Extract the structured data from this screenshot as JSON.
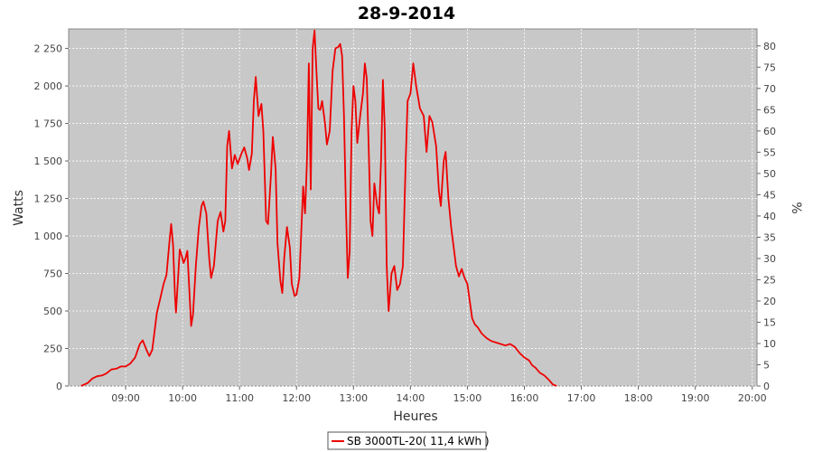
{
  "chart_data": {
    "type": "line",
    "title": "28-9-2014",
    "xlabel": "Heures",
    "ylabel": "Watts",
    "y2label": "%",
    "x_ticks": [
      "09:00",
      "10:00",
      "11:00",
      "12:00",
      "13:00",
      "14:00",
      "15:00",
      "16:00",
      "17:00",
      "18:00",
      "19:00",
      "20:00"
    ],
    "y_ticks": [
      "0",
      "250",
      "500",
      "750",
      "1 000",
      "1 250",
      "1 500",
      "1 750",
      "2 000",
      "2 250"
    ],
    "y2_ticks": [
      "0",
      "5",
      "10",
      "15",
      "20",
      "25",
      "30",
      "35",
      "40",
      "45",
      "50",
      "55",
      "60",
      "65",
      "70",
      "75",
      "80"
    ],
    "xlim": [
      "08:00",
      "20:05"
    ],
    "ylim": [
      0,
      2380
    ],
    "y2lim": [
      0,
      84
    ],
    "grid": true,
    "legend_position": "bottom",
    "colors": {
      "line": "#ee0000",
      "plot_background": "#c8c8c8",
      "grid": "#ffffff"
    },
    "series": [
      {
        "name": "SB 3000TL-20( 11,4 kWh )",
        "points": [
          [
            "08:13",
            0
          ],
          [
            "08:20",
            20
          ],
          [
            "08:25",
            50
          ],
          [
            "08:30",
            65
          ],
          [
            "08:35",
            70
          ],
          [
            "08:40",
            85
          ],
          [
            "08:45",
            110
          ],
          [
            "08:50",
            115
          ],
          [
            "08:55",
            130
          ],
          [
            "09:00",
            130
          ],
          [
            "09:05",
            150
          ],
          [
            "09:10",
            190
          ],
          [
            "09:15",
            280
          ],
          [
            "09:18",
            305
          ],
          [
            "09:22",
            240
          ],
          [
            "09:25",
            200
          ],
          [
            "09:28",
            240
          ],
          [
            "09:30",
            340
          ],
          [
            "09:33",
            490
          ],
          [
            "09:36",
            570
          ],
          [
            "09:40",
            680
          ],
          [
            "09:43",
            740
          ],
          [
            "09:46",
            950
          ],
          [
            "09:48",
            1080
          ],
          [
            "09:50",
            940
          ],
          [
            "09:52",
            600
          ],
          [
            "09:53",
            490
          ],
          [
            "09:55",
            700
          ],
          [
            "09:57",
            910
          ],
          [
            "09:59",
            870
          ],
          [
            "10:01",
            820
          ],
          [
            "10:03",
            850
          ],
          [
            "10:05",
            900
          ],
          [
            "10:07",
            650
          ],
          [
            "10:09",
            400
          ],
          [
            "10:11",
            480
          ],
          [
            "10:14",
            800
          ],
          [
            "10:17",
            1050
          ],
          [
            "10:20",
            1200
          ],
          [
            "10:22",
            1230
          ],
          [
            "10:25",
            1150
          ],
          [
            "10:28",
            850
          ],
          [
            "10:30",
            720
          ],
          [
            "10:33",
            800
          ],
          [
            "10:37",
            1100
          ],
          [
            "10:40",
            1160
          ],
          [
            "10:43",
            1030
          ],
          [
            "10:45",
            1100
          ],
          [
            "10:47",
            1600
          ],
          [
            "10:49",
            1700
          ],
          [
            "10:52",
            1450
          ],
          [
            "10:55",
            1540
          ],
          [
            "10:58",
            1480
          ],
          [
            "11:02",
            1550
          ],
          [
            "11:05",
            1590
          ],
          [
            "11:08",
            1520
          ],
          [
            "11:10",
            1440
          ],
          [
            "11:13",
            1550
          ],
          [
            "11:15",
            1900
          ],
          [
            "11:17",
            2060
          ],
          [
            "11:20",
            1800
          ],
          [
            "11:23",
            1880
          ],
          [
            "11:25",
            1700
          ],
          [
            "11:28",
            1100
          ],
          [
            "11:30",
            1080
          ],
          [
            "11:33",
            1400
          ],
          [
            "11:35",
            1660
          ],
          [
            "11:38",
            1450
          ],
          [
            "11:40",
            950
          ],
          [
            "11:43",
            700
          ],
          [
            "11:45",
            620
          ],
          [
            "11:47",
            850
          ],
          [
            "11:50",
            1060
          ],
          [
            "11:53",
            920
          ],
          [
            "11:55",
            680
          ],
          [
            "11:58",
            600
          ],
          [
            "12:00",
            610
          ],
          [
            "12:03",
            720
          ],
          [
            "12:07",
            1330
          ],
          [
            "12:09",
            1150
          ],
          [
            "12:11",
            1500
          ],
          [
            "12:13",
            2150
          ],
          [
            "12:14",
            1700
          ],
          [
            "12:15",
            1310
          ],
          [
            "12:17",
            2250
          ],
          [
            "12:19",
            2370
          ],
          [
            "12:21",
            2100
          ],
          [
            "12:23",
            1850
          ],
          [
            "12:25",
            1840
          ],
          [
            "12:27",
            1900
          ],
          [
            "12:30",
            1750
          ],
          [
            "12:32",
            1610
          ],
          [
            "12:35",
            1700
          ],
          [
            "12:38",
            2100
          ],
          [
            "12:41",
            2250
          ],
          [
            "12:44",
            2260
          ],
          [
            "12:46",
            2280
          ],
          [
            "12:48",
            2200
          ],
          [
            "12:50",
            1800
          ],
          [
            "12:52",
            1200
          ],
          [
            "12:54",
            720
          ],
          [
            "12:56",
            900
          ],
          [
            "12:58",
            1700
          ],
          [
            "13:00",
            2000
          ],
          [
            "13:02",
            1900
          ],
          [
            "13:04",
            1620
          ],
          [
            "13:07",
            1800
          ],
          [
            "13:10",
            1950
          ],
          [
            "13:12",
            2150
          ],
          [
            "13:14",
            2050
          ],
          [
            "13:16",
            1600
          ],
          [
            "13:18",
            1100
          ],
          [
            "13:20",
            1000
          ],
          [
            "13:22",
            1350
          ],
          [
            "13:25",
            1200
          ],
          [
            "13:27",
            1150
          ],
          [
            "13:29",
            1500
          ],
          [
            "13:31",
            2040
          ],
          [
            "13:33",
            1700
          ],
          [
            "13:35",
            800
          ],
          [
            "13:37",
            500
          ],
          [
            "13:40",
            750
          ],
          [
            "13:43",
            800
          ],
          [
            "13:46",
            640
          ],
          [
            "13:49",
            680
          ],
          [
            "13:52",
            800
          ],
          [
            "13:55",
            1500
          ],
          [
            "13:57",
            1900
          ],
          [
            "14:00",
            1950
          ],
          [
            "14:03",
            2150
          ],
          [
            "14:06",
            2000
          ],
          [
            "14:10",
            1850
          ],
          [
            "14:14",
            1800
          ],
          [
            "14:17",
            1560
          ],
          [
            "14:20",
            1800
          ],
          [
            "14:23",
            1760
          ],
          [
            "14:27",
            1600
          ],
          [
            "14:30",
            1300
          ],
          [
            "14:32",
            1200
          ],
          [
            "14:35",
            1500
          ],
          [
            "14:37",
            1560
          ],
          [
            "14:40",
            1250
          ],
          [
            "14:43",
            1050
          ],
          [
            "14:45",
            950
          ],
          [
            "14:48",
            800
          ],
          [
            "14:51",
            730
          ],
          [
            "14:54",
            780
          ],
          [
            "14:57",
            720
          ],
          [
            "15:00",
            680
          ],
          [
            "15:05",
            450
          ],
          [
            "15:08",
            410
          ],
          [
            "15:11",
            390
          ],
          [
            "15:15",
            350
          ],
          [
            "15:20",
            320
          ],
          [
            "15:25",
            300
          ],
          [
            "15:30",
            290
          ],
          [
            "15:35",
            280
          ],
          [
            "15:40",
            270
          ],
          [
            "15:45",
            280
          ],
          [
            "15:50",
            260
          ],
          [
            "15:55",
            220
          ],
          [
            "16:00",
            190
          ],
          [
            "16:05",
            170
          ],
          [
            "16:08",
            140
          ],
          [
            "16:12",
            120
          ],
          [
            "16:16",
            90
          ],
          [
            "16:21",
            70
          ],
          [
            "16:26",
            40
          ],
          [
            "16:30",
            10
          ],
          [
            "16:34",
            0
          ]
        ]
      }
    ]
  }
}
